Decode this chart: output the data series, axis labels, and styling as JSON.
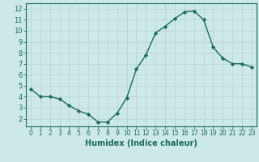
{
  "x": [
    0,
    1,
    2,
    3,
    4,
    5,
    6,
    7,
    8,
    9,
    10,
    11,
    12,
    13,
    14,
    15,
    16,
    17,
    18,
    19,
    20,
    21,
    22,
    23
  ],
  "y": [
    4.7,
    4.0,
    4.0,
    3.8,
    3.2,
    2.7,
    2.4,
    1.7,
    1.7,
    2.5,
    3.9,
    6.5,
    7.8,
    9.8,
    10.4,
    11.1,
    11.7,
    11.8,
    11.0,
    8.5,
    7.5,
    7.0,
    7.0,
    6.7
  ],
  "line_color": "#1a6b5a",
  "marker": "D",
  "marker_size": 2.2,
  "bg_color": "#cce8e8",
  "grid_color": "#b8d4d4",
  "xlabel": "Humidex (Indice chaleur)",
  "ylabel": "",
  "xlim": [
    -0.5,
    23.5
  ],
  "ylim": [
    1.3,
    12.5
  ],
  "yticks": [
    2,
    3,
    4,
    5,
    6,
    7,
    8,
    9,
    10,
    11,
    12
  ],
  "xticks": [
    0,
    1,
    2,
    3,
    4,
    5,
    6,
    7,
    8,
    9,
    10,
    11,
    12,
    13,
    14,
    15,
    16,
    17,
    18,
    19,
    20,
    21,
    22,
    23
  ],
  "xlabel_color": "#1a6b5a",
  "tick_color": "#1a6b5a",
  "axis_color": "#1a6b5a",
  "tick_fontsize": 5.5,
  "xlabel_fontsize": 7.0,
  "linewidth": 1.0
}
